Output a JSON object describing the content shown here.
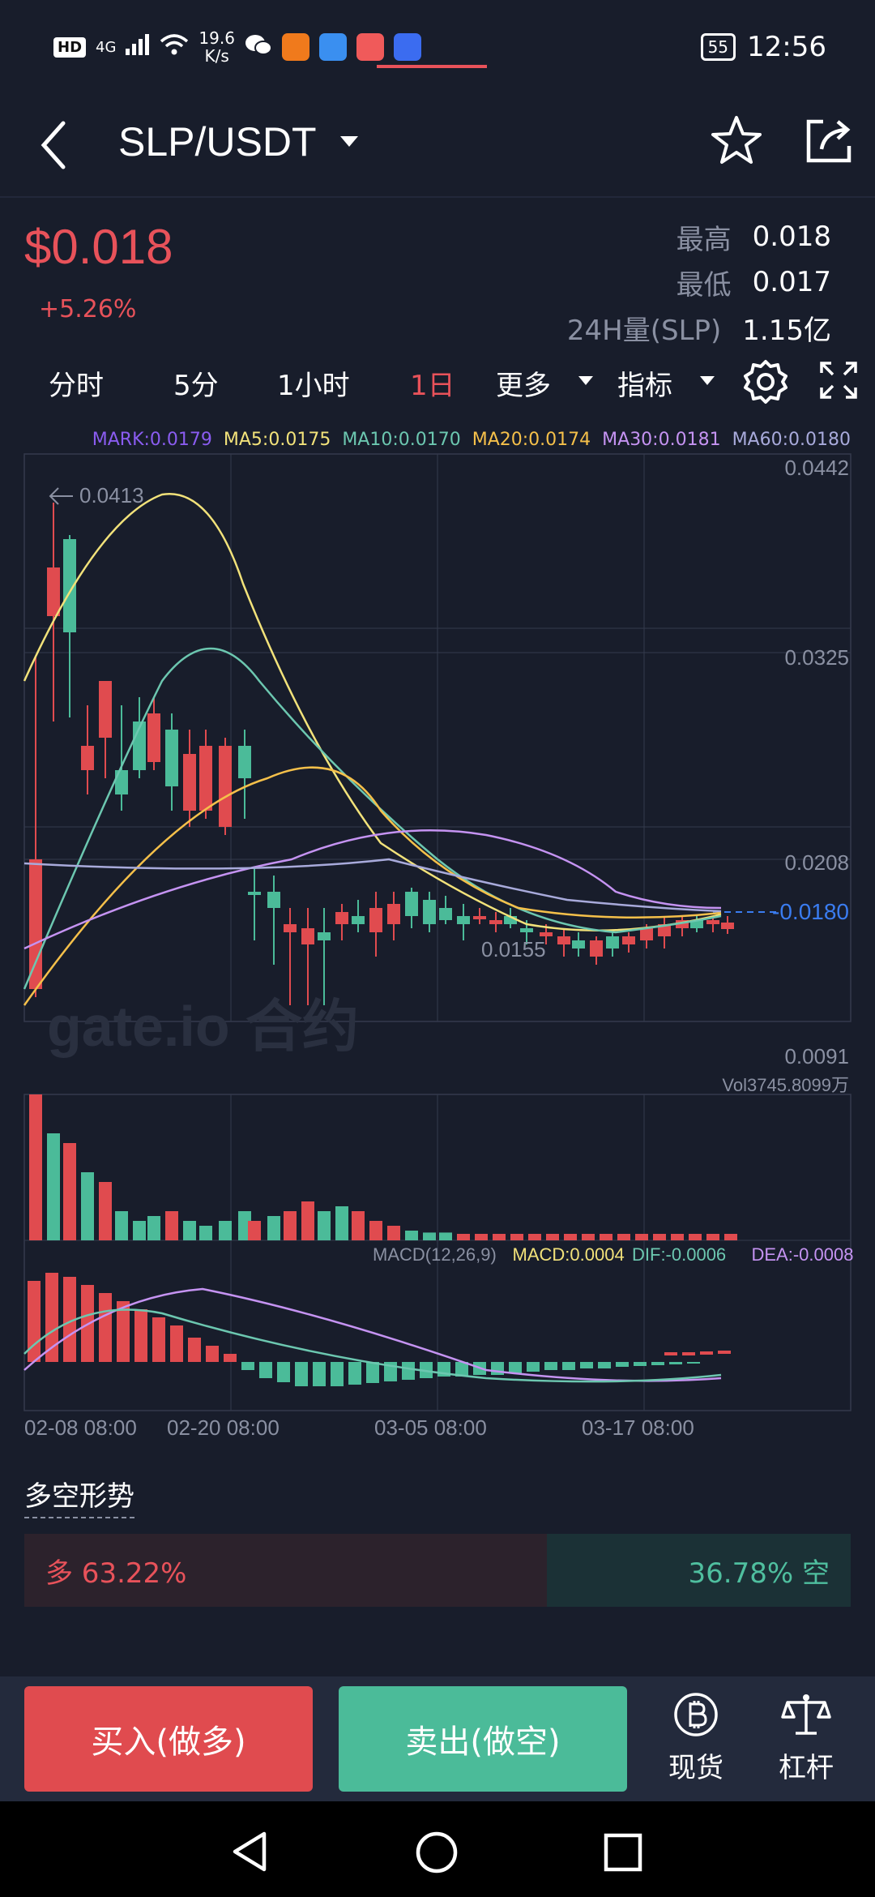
{
  "status_bar": {
    "hd": "HD",
    "signal": "4G",
    "speed_value": "19.6",
    "speed_unit": "K/s",
    "battery": "55",
    "time": "12:56"
  },
  "header": {
    "pair": "SLP/USDT"
  },
  "price": {
    "last": "$0.018",
    "change": "+5.26%",
    "high_label": "最高",
    "high_value": "0.018",
    "low_label": "最低",
    "low_value": "0.017",
    "vol_label": "24H量(SLP)",
    "vol_value": "1.15亿"
  },
  "tabs": [
    "分时",
    "5分",
    "1小时",
    "1日",
    "更多",
    "指标"
  ],
  "active_tab": "1日",
  "legend": [
    {
      "text": "MARK:0.0179",
      "color": "#8a5cf0"
    },
    {
      "text": "MA5:0.0175",
      "color": "#f2e27a"
    },
    {
      "text": "MA10:0.0170",
      "color": "#6cc7b0"
    },
    {
      "text": "MA20:0.0174",
      "color": "#f5c04a"
    },
    {
      "text": "MA30:0.0181",
      "color": "#c593f2"
    },
    {
      "text": "MA60:0.0180",
      "color": "#a8aadb"
    }
  ],
  "chart": {
    "y_ticks": [
      "0.0442",
      "0.0325",
      "0.0208",
      "0.0091"
    ],
    "current_price": "0.0180",
    "max_label": "0.0413",
    "min_label": "0.0155",
    "x_labels": [
      "02-08 08:00",
      "02-20 08:00",
      "03-05 08:00",
      "03-17 08:00"
    ],
    "vol_label": "Vol3745.8099万",
    "macd_labels": [
      {
        "text": "MACD(12,26,9)",
        "color": "#8a90a2"
      },
      {
        "text": "MACD:0.0004",
        "color": "#f2e27a"
      },
      {
        "text": "DIF:-0.0006",
        "color": "#6cc7b0"
      },
      {
        "text": "DEA:-0.0008",
        "color": "#c593f2"
      }
    ],
    "watermark": "gate.io 合约"
  },
  "long_short": {
    "title": "多空形势",
    "long_text": "多 63.22%",
    "short_text": "36.78% 空",
    "long_pct": 63.22
  },
  "bottom": {
    "buy_label": "买入(做多)",
    "sell_label": "卖出(做空)",
    "spot_label": "现货",
    "margin_label": "杠杆"
  }
}
